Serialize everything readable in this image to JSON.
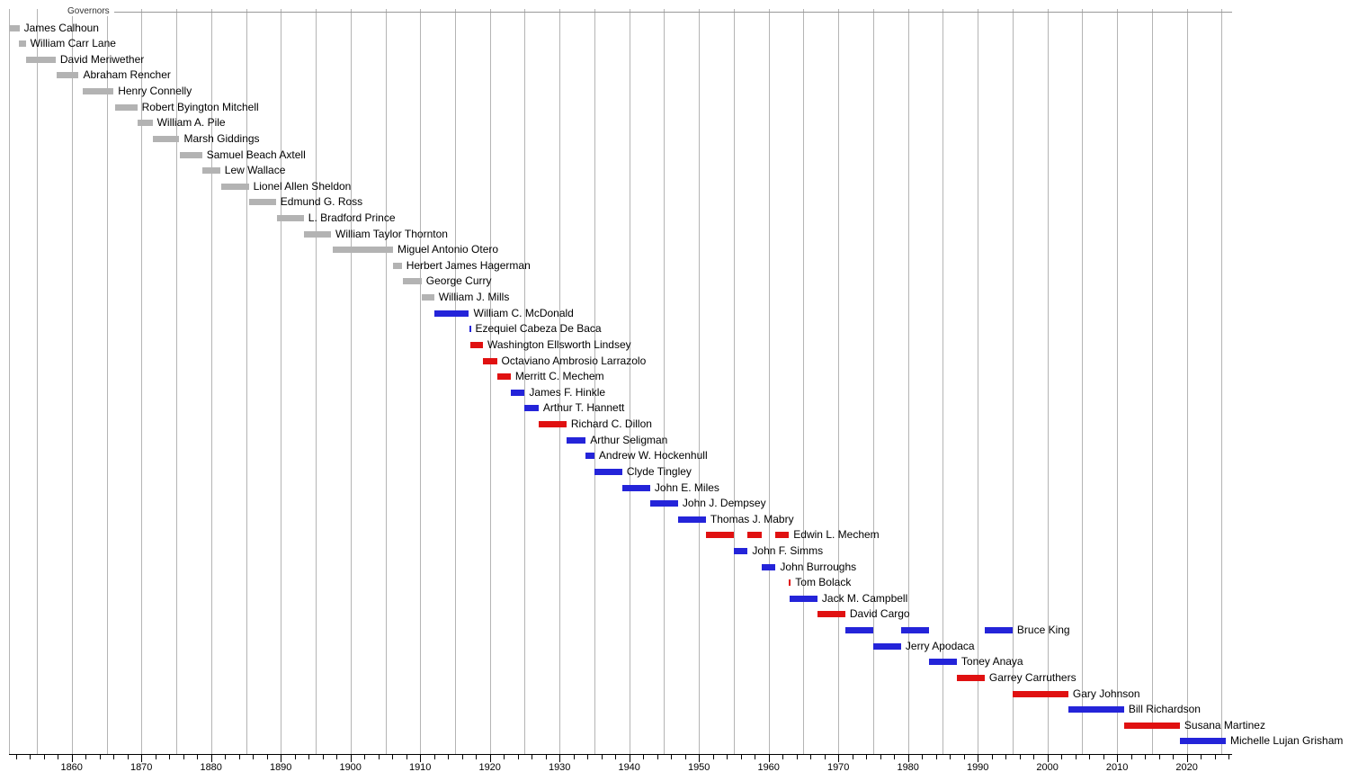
{
  "chart_data": {
    "type": "bar",
    "variant": "timeline-gantt",
    "title": "Governors",
    "x_axis": {
      "range": [
        1851,
        2026.5
      ],
      "major_tick_labels": [
        "1860",
        "1870",
        "1880",
        "1890",
        "1900",
        "1910",
        "1920",
        "1930",
        "1940",
        "1950",
        "1960",
        "1970",
        "1980",
        "1990",
        "2000",
        "2010",
        "2020"
      ],
      "major_tick_years": [
        1860,
        1870,
        1880,
        1890,
        1900,
        1910,
        1920,
        1930,
        1940,
        1950,
        1960,
        1970,
        1980,
        1990,
        2000,
        2010,
        2020
      ],
      "minor_tick_step": 2,
      "minor_tick_start": 1852,
      "minor_tick_end": 2026,
      "gridline_step": 5,
      "gridline_start": 1855,
      "gridline_end": 2025,
      "grid": "on",
      "legend_position": "none"
    },
    "party_colors": {
      "territorial": "#b3b3b3",
      "democratic": "#2424d9",
      "republican": "#e01111"
    },
    "governors": [
      {
        "name": "James Calhoun",
        "party": "territorial",
        "terms": [
          [
            1851.0,
            1852.5
          ]
        ]
      },
      {
        "name": "William Carr Lane",
        "party": "territorial",
        "terms": [
          [
            1852.35,
            1853.4
          ]
        ]
      },
      {
        "name": "David Meriwether",
        "party": "territorial",
        "terms": [
          [
            1853.4,
            1857.7
          ]
        ]
      },
      {
        "name": "Abraham Rencher",
        "party": "territorial",
        "terms": [
          [
            1857.8,
            1861.0
          ]
        ]
      },
      {
        "name": "Henry Connelly",
        "party": "territorial",
        "terms": [
          [
            1861.55,
            1866.0
          ]
        ]
      },
      {
        "name": "Robert Byington Mitchell",
        "party": "territorial",
        "terms": [
          [
            1866.2,
            1869.4
          ]
        ]
      },
      {
        "name": "William A. Pile",
        "party": "territorial",
        "terms": [
          [
            1869.4,
            1871.6
          ]
        ]
      },
      {
        "name": "Marsh Giddings",
        "party": "territorial",
        "terms": [
          [
            1871.6,
            1875.45
          ]
        ]
      },
      {
        "name": "Samuel Beach Axtell",
        "party": "territorial",
        "terms": [
          [
            1875.45,
            1878.7
          ]
        ]
      },
      {
        "name": "Lew Wallace",
        "party": "territorial",
        "terms": [
          [
            1878.7,
            1881.3
          ]
        ]
      },
      {
        "name": "Lionel Allen Sheldon",
        "party": "territorial",
        "terms": [
          [
            1881.4,
            1885.4
          ]
        ]
      },
      {
        "name": "Edmund G. Ross",
        "party": "territorial",
        "terms": [
          [
            1885.5,
            1889.3
          ]
        ]
      },
      {
        "name": "L. Bradford Prince",
        "party": "territorial",
        "terms": [
          [
            1889.4,
            1893.3
          ]
        ]
      },
      {
        "name": "William Taylor Thornton",
        "party": "territorial",
        "terms": [
          [
            1893.3,
            1897.2
          ]
        ]
      },
      {
        "name": "Miguel Antonio Otero",
        "party": "territorial",
        "terms": [
          [
            1897.4,
            1906.1
          ]
        ]
      },
      {
        "name": "Herbert James Hagerman",
        "party": "territorial",
        "terms": [
          [
            1906.1,
            1907.35
          ]
        ]
      },
      {
        "name": "George Curry",
        "party": "territorial",
        "terms": [
          [
            1907.55,
            1910.2
          ]
        ]
      },
      {
        "name": "William J. Mills",
        "party": "territorial",
        "terms": [
          [
            1910.25,
            1912.0
          ]
        ]
      },
      {
        "name": "William C. McDonald",
        "party": "democratic",
        "terms": [
          [
            1912.0,
            1917.0
          ]
        ]
      },
      {
        "name": "Ezequiel Cabeza De Baca",
        "party": "democratic",
        "terms": [
          [
            1917.0,
            1917.15
          ]
        ]
      },
      {
        "name": "Washington Ellsworth Lindsey",
        "party": "republican",
        "terms": [
          [
            1917.15,
            1919.0
          ]
        ]
      },
      {
        "name": "Octaviano Ambrosio Larrazolo",
        "party": "republican",
        "terms": [
          [
            1919.0,
            1921.0
          ]
        ]
      },
      {
        "name": "Merritt C. Mechem",
        "party": "republican",
        "terms": [
          [
            1921.0,
            1923.0
          ]
        ]
      },
      {
        "name": "James F. Hinkle",
        "party": "democratic",
        "terms": [
          [
            1923.0,
            1925.0
          ]
        ]
      },
      {
        "name": "Arthur T. Hannett",
        "party": "democratic",
        "terms": [
          [
            1925.0,
            1927.0
          ]
        ]
      },
      {
        "name": "Richard C. Dillon",
        "party": "republican",
        "terms": [
          [
            1927.0,
            1931.0
          ]
        ]
      },
      {
        "name": "Arthur Seligman",
        "party": "democratic",
        "terms": [
          [
            1931.0,
            1933.75
          ]
        ]
      },
      {
        "name": "Andrew W. Hockenhull",
        "party": "democratic",
        "terms": [
          [
            1933.75,
            1935.0
          ]
        ]
      },
      {
        "name": "Clyde Tingley",
        "party": "democratic",
        "terms": [
          [
            1935.0,
            1939.0
          ]
        ]
      },
      {
        "name": "John E. Miles",
        "party": "democratic",
        "terms": [
          [
            1939.0,
            1943.0
          ]
        ]
      },
      {
        "name": "John J. Dempsey",
        "party": "democratic",
        "terms": [
          [
            1943.0,
            1947.0
          ]
        ]
      },
      {
        "name": "Thomas J. Mabry",
        "party": "democratic",
        "terms": [
          [
            1947.0,
            1951.0
          ]
        ]
      },
      {
        "name": "Edwin L. Mechem",
        "party": "republican",
        "terms": [
          [
            1951.0,
            1955.0
          ],
          [
            1957.0,
            1959.0
          ],
          [
            1961.0,
            1962.92
          ]
        ]
      },
      {
        "name": "John F. Simms",
        "party": "democratic",
        "terms": [
          [
            1955.0,
            1957.0
          ]
        ]
      },
      {
        "name": "John Burroughs",
        "party": "democratic",
        "terms": [
          [
            1959.0,
            1961.0
          ]
        ]
      },
      {
        "name": "Tom Bolack",
        "party": "republican",
        "terms": [
          [
            1962.92,
            1963.0
          ]
        ]
      },
      {
        "name": "Jack M. Campbell",
        "party": "democratic",
        "terms": [
          [
            1963.0,
            1967.0
          ]
        ]
      },
      {
        "name": "David Cargo",
        "party": "republican",
        "terms": [
          [
            1967.0,
            1971.0
          ]
        ]
      },
      {
        "name": "Bruce King",
        "party": "democratic",
        "terms": [
          [
            1971.0,
            1975.0
          ],
          [
            1979.0,
            1983.0
          ],
          [
            1991.0,
            1995.0
          ]
        ]
      },
      {
        "name": "Jerry Apodaca",
        "party": "democratic",
        "terms": [
          [
            1975.0,
            1979.0
          ]
        ]
      },
      {
        "name": "Toney Anaya",
        "party": "democratic",
        "terms": [
          [
            1983.0,
            1987.0
          ]
        ]
      },
      {
        "name": "Garrey Carruthers",
        "party": "republican",
        "terms": [
          [
            1987.0,
            1991.0
          ]
        ]
      },
      {
        "name": "Gary Johnson",
        "party": "republican",
        "terms": [
          [
            1995.0,
            2003.0
          ]
        ]
      },
      {
        "name": "Bill Richardson",
        "party": "democratic",
        "terms": [
          [
            2003.0,
            2011.0
          ]
        ]
      },
      {
        "name": "Susana Martinez",
        "party": "republican",
        "terms": [
          [
            2011.0,
            2019.0
          ]
        ]
      },
      {
        "name": "Michelle Lujan Grisham",
        "party": "democratic",
        "terms": [
          [
            2019.0,
            2025.6
          ]
        ]
      }
    ]
  }
}
